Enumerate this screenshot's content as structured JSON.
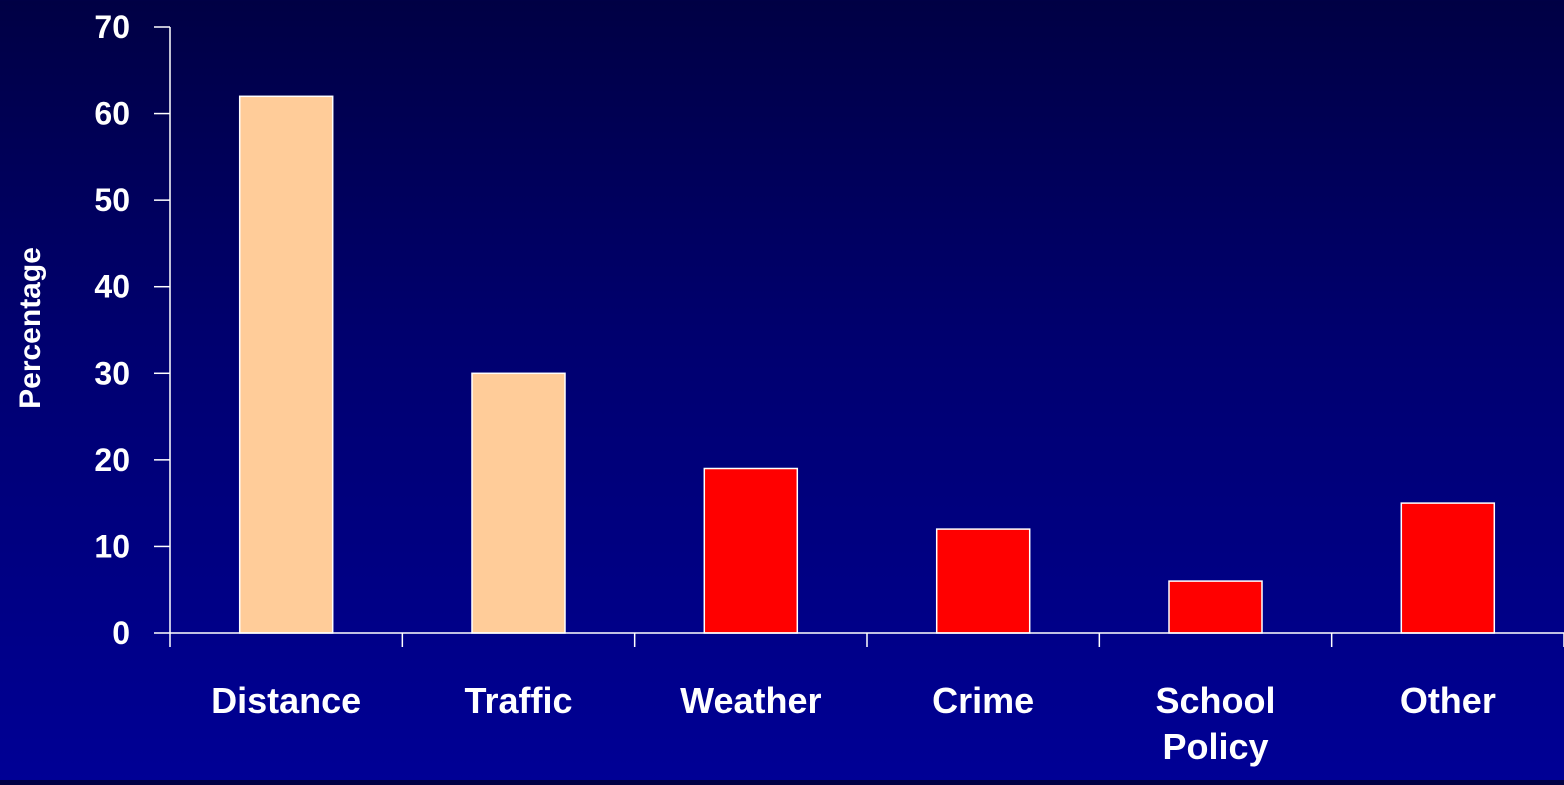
{
  "chart_data": {
    "type": "bar",
    "title": "",
    "xlabel": "",
    "ylabel": "Percentage",
    "ylim": [
      0,
      70
    ],
    "yticks": [
      0,
      10,
      20,
      30,
      40,
      50,
      60,
      70
    ],
    "grid": false,
    "categories": [
      "Distance",
      "Traffic",
      "Weather",
      "Crime",
      "School Policy",
      "Other"
    ],
    "category_label_lines": [
      [
        "Distance"
      ],
      [
        "Traffic"
      ],
      [
        "Weather"
      ],
      [
        "Crime"
      ],
      [
        "School",
        "Policy"
      ],
      [
        "Other"
      ]
    ],
    "values": [
      62,
      30,
      19,
      12,
      6,
      15
    ],
    "bar_colors": [
      "#FFCC99",
      "#FFCC99",
      "#FF0000",
      "#FF0000",
      "#FF0000",
      "#FF0000"
    ],
    "axis_color": "#FFFFFF",
    "text_color": "#FFFFFF",
    "bar_outline_color": "#FFFFFF"
  }
}
